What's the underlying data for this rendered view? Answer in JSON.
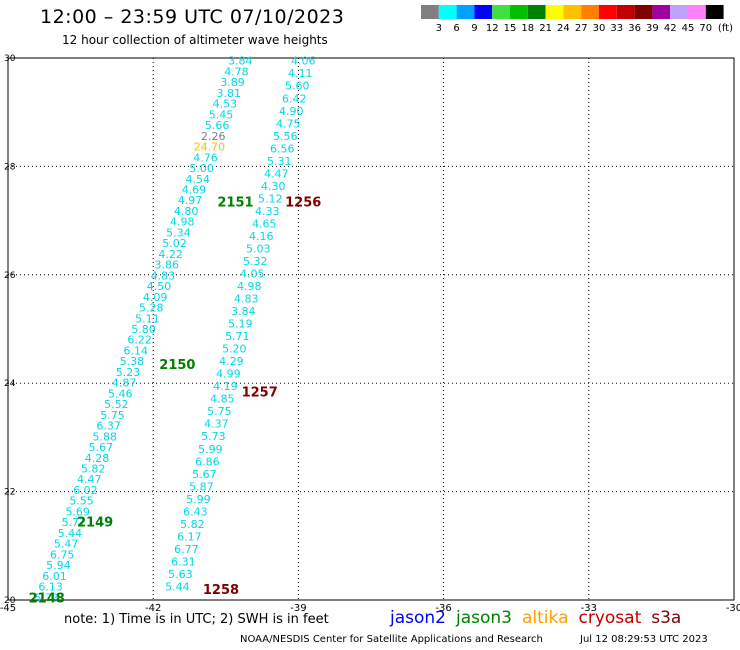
{
  "title": "12:00 – 23:59 UTC 07/10/2023",
  "subtitle": "12 hour collection of altimeter wave heights",
  "legend": {
    "unit": "(ft)",
    "bins": [
      {
        "label": "3",
        "color": "#808080"
      },
      {
        "label": "6",
        "color": "#00ffff"
      },
      {
        "label": "9",
        "color": "#00a0ff"
      },
      {
        "label": "12",
        "color": "#0000ff"
      },
      {
        "label": "15",
        "color": "#40e040"
      },
      {
        "label": "18",
        "color": "#00c000"
      },
      {
        "label": "21",
        "color": "#008000"
      },
      {
        "label": "24",
        "color": "#ffff00"
      },
      {
        "label": "27",
        "color": "#ffc000"
      },
      {
        "label": "30",
        "color": "#ff8000"
      },
      {
        "label": "33",
        "color": "#ff0000"
      },
      {
        "label": "36",
        "color": "#c00000"
      },
      {
        "label": "39",
        "color": "#800000"
      },
      {
        "label": "42",
        "color": "#a000a0"
      },
      {
        "label": "45",
        "color": "#c0a0ff"
      },
      {
        "label": "70",
        "color": "#ff80ff"
      },
      {
        "label": "",
        "color": "#000000"
      }
    ]
  },
  "map": {
    "lon_range": [
      -45,
      -30
    ],
    "lat_range": [
      20,
      30
    ],
    "lon_ticks": [
      "-45",
      "-42",
      "-39",
      "-36",
      "-33",
      "-30"
    ],
    "lat_ticks": [
      "30",
      "28",
      "26",
      "24",
      "22",
      "20"
    ],
    "tracks": [
      {
        "name": "track-a",
        "start": {
          "lon": -44.2,
          "lat": 20.05
        },
        "end": {
          "lon": -40.2,
          "lat": 29.95
        },
        "color": "#00d8e8",
        "values": [
          "5.73",
          "6.13",
          "6.01",
          "5.94",
          "6.75",
          "5.47",
          "5.44",
          "5.72",
          "5.69",
          "5.55",
          "6.02",
          "4.47",
          "5.82",
          "4.28",
          "5.67",
          "5.88",
          "6.37",
          "5.75",
          "5.52",
          "5.46",
          "4.87",
          "5.23",
          "5.38",
          "6.14",
          "6.22",
          "5.80",
          "5.11",
          "5.28",
          "4.09",
          "4.50",
          "4.83",
          "3.86",
          "4.22",
          "5.02",
          "5.34",
          "4.98",
          "4.80",
          "4.97",
          "4.69",
          "4.54",
          "5.00",
          "4.76",
          "24.70",
          "2.26",
          "5.66",
          "5.45",
          "4.53",
          "3.81",
          "3.89",
          "4.78",
          "3.84"
        ],
        "value_colors": {
          "24.70": "#ffc000",
          "2.26": "#808080"
        }
      },
      {
        "name": "track-b",
        "start": {
          "lon": -41.5,
          "lat": 20.25
        },
        "end": {
          "lon": -38.9,
          "lat": 29.95
        },
        "color": "#00d8e8",
        "values": [
          "5.44",
          "5.63",
          "6.31",
          "6.77",
          "6.17",
          "5.82",
          "6.43",
          "5.99",
          "5.87",
          "5.67",
          "6.86",
          "5.99",
          "5.73",
          "4.37",
          "5.75",
          "4.85",
          "4.19",
          "4.99",
          "4.29",
          "5.20",
          "5.71",
          "5.19",
          "3.84",
          "4.83",
          "4.98",
          "4.05",
          "5.32",
          "5.03",
          "4.16",
          "4.65",
          "4.33",
          "5.12",
          "4.30",
          "4.47",
          "5.31",
          "6.56",
          "5.56",
          "4.75",
          "4.90",
          "6.42",
          "5.60",
          "4.11",
          "4.06"
        ],
        "value_colors": {}
      }
    ],
    "pass_labels": [
      {
        "text": "2148",
        "lon": -44.2,
        "lat": 20.05,
        "color": "#008000"
      },
      {
        "text": "2149",
        "lon": -43.2,
        "lat": 21.45,
        "color": "#008000"
      },
      {
        "text": "2150",
        "lon": -41.5,
        "lat": 24.35,
        "color": "#008000"
      },
      {
        "text": "2151",
        "lon": -40.3,
        "lat": 27.35,
        "color": "#008000"
      },
      {
        "text": "1258",
        "lon": -40.6,
        "lat": 20.2,
        "color": "#800000"
      },
      {
        "text": "1257",
        "lon": -39.8,
        "lat": 23.85,
        "color": "#800000"
      },
      {
        "text": "1256",
        "lon": -38.9,
        "lat": 27.35,
        "color": "#800000"
      }
    ]
  },
  "footer_note": "note:  1) Time is in UTC;  2) SWH is in feet",
  "satellites": [
    {
      "name": "jason2",
      "color": "#0000ff"
    },
    {
      "name": "jason3",
      "color": "#008000"
    },
    {
      "name": "altika",
      "color": "#ffa000"
    },
    {
      "name": "cryosat",
      "color": "#c00000"
    },
    {
      "name": "s3a",
      "color": "#800000"
    }
  ],
  "credit": "NOAA/NESDIS Center for Satellite Applications and Research",
  "timestamp": "Jul 12 08:29:53 UTC 2023"
}
